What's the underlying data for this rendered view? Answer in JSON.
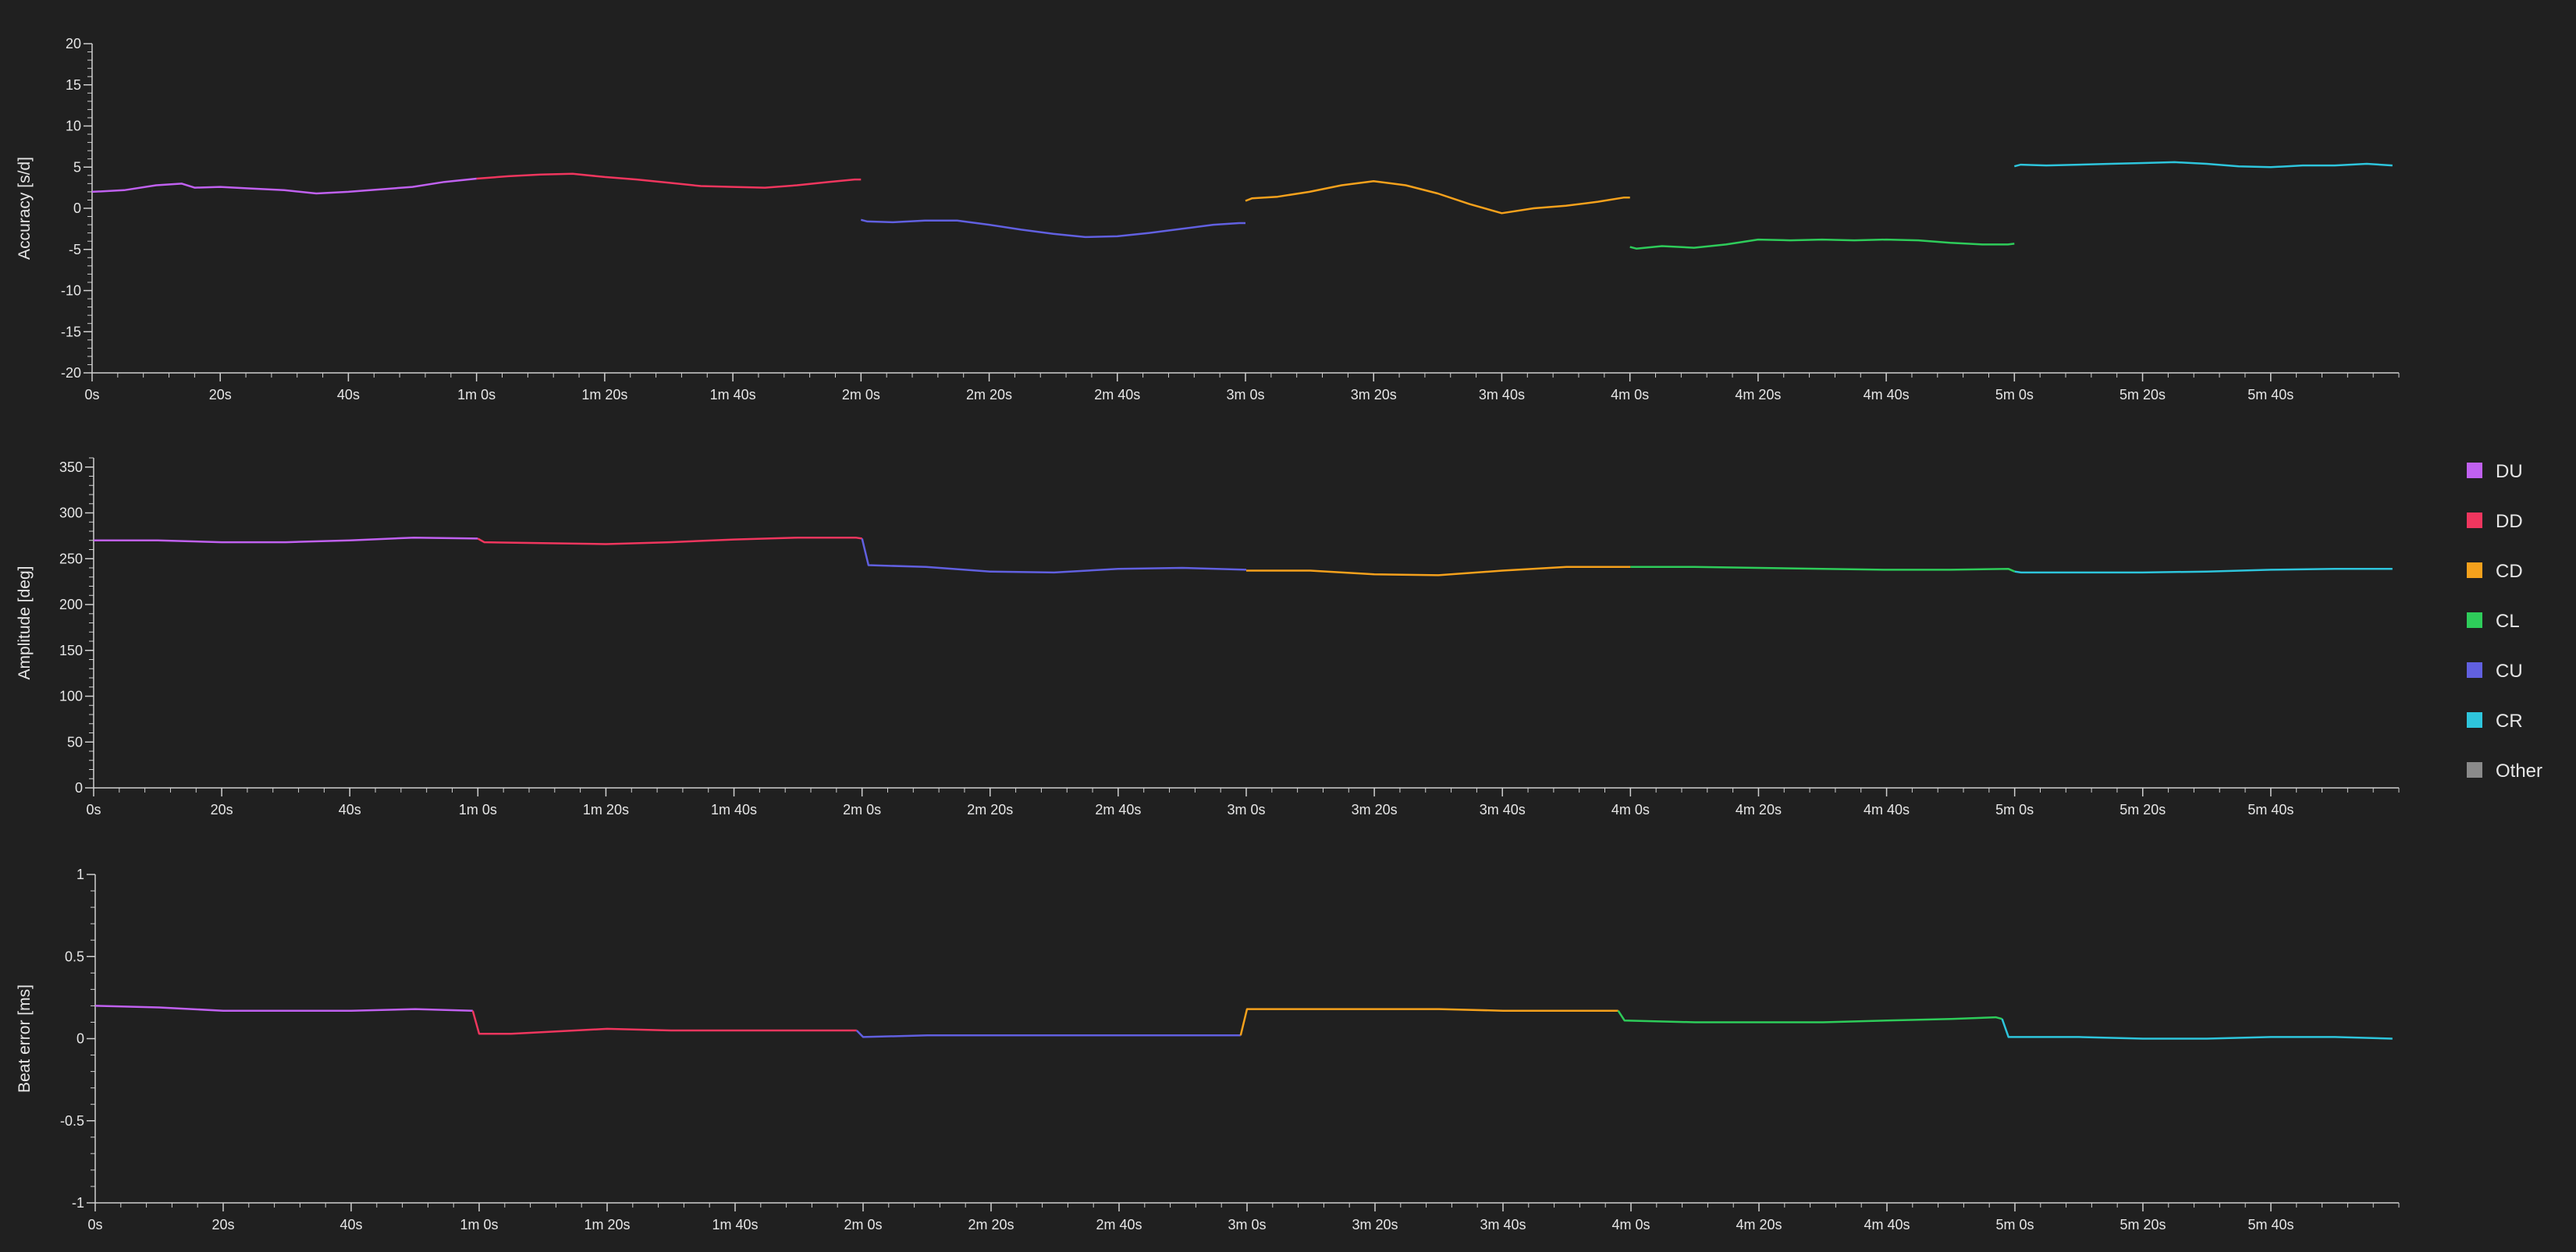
{
  "colors": {
    "background": "#202020",
    "axis": "#cfcfcf",
    "text": "#e6e6e6"
  },
  "legend": [
    {
      "label": "DU",
      "color": "#c061f0"
    },
    {
      "label": "DD",
      "color": "#f0365e"
    },
    {
      "label": "CD",
      "color": "#f5a11c"
    },
    {
      "label": "CL",
      "color": "#2ecc5a"
    },
    {
      "label": "CU",
      "color": "#6160e0"
    },
    {
      "label": "CR",
      "color": "#2ec5dc"
    },
    {
      "label": "Other",
      "color": "#8a8a8a"
    }
  ],
  "chart_data": [
    {
      "type": "line",
      "ylabel": "Accuracy [s/d]",
      "xlabel": "",
      "xunit": "seconds",
      "xlim": [
        0,
        360
      ],
      "ylim": [
        -20,
        20
      ],
      "yticks": [
        "-20",
        "-15",
        "-10",
        "-5",
        "0",
        "5",
        "10",
        "15",
        "20"
      ],
      "ytick_values": [
        -20,
        -15,
        -10,
        -5,
        0,
        5,
        10,
        15,
        20
      ],
      "xticks": [
        "0s",
        "20s",
        "40s",
        "1m 0s",
        "1m 20s",
        "1m 40s",
        "2m 0s",
        "2m 20s",
        "2m 40s",
        "3m 0s",
        "3m 20s",
        "3m 40s",
        "4m 0s",
        "4m 20s",
        "4m 40s",
        "5m 0s",
        "5m 20s",
        "5m 40s"
      ],
      "xtick_values": [
        0,
        20,
        40,
        60,
        80,
        100,
        120,
        140,
        160,
        180,
        200,
        220,
        240,
        260,
        280,
        300,
        320,
        340
      ],
      "grid": false,
      "series": [
        {
          "name": "DU",
          "x": [
            0,
            5,
            10,
            14,
            16,
            20,
            25,
            30,
            35,
            40,
            45,
            50,
            55,
            60
          ],
          "y": [
            2.0,
            2.2,
            2.8,
            3.0,
            2.5,
            2.6,
            2.4,
            2.2,
            1.8,
            2.0,
            2.3,
            2.6,
            3.2,
            3.6
          ]
        },
        {
          "name": "DD",
          "x": [
            60,
            65,
            70,
            75,
            80,
            85,
            90,
            95,
            100,
            105,
            110,
            115,
            119,
            120
          ],
          "y": [
            3.6,
            3.9,
            4.1,
            4.2,
            3.8,
            3.5,
            3.1,
            2.7,
            2.6,
            2.5,
            2.8,
            3.2,
            3.5,
            3.5
          ]
        },
        {
          "name": "CU",
          "x": [
            120,
            121,
            125,
            130,
            135,
            140,
            145,
            150,
            155,
            160,
            165,
            170,
            175,
            179,
            180
          ],
          "y": [
            -1.4,
            -1.6,
            -1.7,
            -1.5,
            -1.5,
            -2.0,
            -2.6,
            -3.1,
            -3.5,
            -3.4,
            -3.0,
            -2.5,
            -2.0,
            -1.8,
            -1.8
          ]
        },
        {
          "name": "CD",
          "x": [
            180,
            181,
            185,
            190,
            195,
            200,
            205,
            210,
            215,
            220,
            225,
            230,
            235,
            239,
            240
          ],
          "y": [
            0.9,
            1.2,
            1.4,
            2.0,
            2.8,
            3.3,
            2.8,
            1.8,
            0.5,
            -0.6,
            0.0,
            0.3,
            0.8,
            1.3,
            1.3
          ]
        },
        {
          "name": "CL",
          "x": [
            240,
            241,
            245,
            250,
            255,
            260,
            265,
            270,
            275,
            280,
            285,
            290,
            295,
            299,
            300
          ],
          "y": [
            -4.7,
            -4.9,
            -4.6,
            -4.8,
            -4.4,
            -3.8,
            -3.9,
            -3.8,
            -3.9,
            -3.8,
            -3.9,
            -4.2,
            -4.4,
            -4.4,
            -4.3
          ]
        },
        {
          "name": "CR",
          "x": [
            300,
            301,
            305,
            310,
            315,
            320,
            325,
            330,
            335,
            340,
            345,
            350,
            355,
            359
          ],
          "y": [
            5.1,
            5.3,
            5.2,
            5.3,
            5.4,
            5.5,
            5.6,
            5.4,
            5.1,
            5.0,
            5.2,
            5.2,
            5.4,
            5.2
          ]
        }
      ]
    },
    {
      "type": "line",
      "ylabel": "Amplitude [deg]",
      "xlabel": "",
      "xunit": "seconds",
      "xlim": [
        0,
        360
      ],
      "ylim": [
        0,
        360
      ],
      "yticks": [
        "0",
        "50",
        "100",
        "150",
        "200",
        "250",
        "300",
        "350"
      ],
      "ytick_values": [
        0,
        50,
        100,
        150,
        200,
        250,
        300,
        350
      ],
      "xticks": [
        "0s",
        "20s",
        "40s",
        "1m 0s",
        "1m 20s",
        "1m 40s",
        "2m 0s",
        "2m 20s",
        "2m 40s",
        "3m 0s",
        "3m 20s",
        "3m 40s",
        "4m 0s",
        "4m 20s",
        "4m 40s",
        "5m 0s",
        "5m 20s",
        "5m 40s"
      ],
      "xtick_values": [
        0,
        20,
        40,
        60,
        80,
        100,
        120,
        140,
        160,
        180,
        200,
        220,
        240,
        260,
        280,
        300,
        320,
        340
      ],
      "grid": false,
      "series": [
        {
          "name": "DU",
          "x": [
            0,
            10,
            20,
            30,
            40,
            50,
            60
          ],
          "y": [
            270,
            270,
            268,
            268,
            270,
            273,
            272
          ]
        },
        {
          "name": "DD",
          "x": [
            60,
            61,
            70,
            80,
            90,
            100,
            110,
            119,
            120
          ],
          "y": [
            272,
            268,
            267,
            266,
            268,
            271,
            273,
            273,
            272
          ]
        },
        {
          "name": "CU",
          "x": [
            120,
            121,
            130,
            140,
            150,
            160,
            170,
            180
          ],
          "y": [
            272,
            243,
            241,
            236,
            235,
            239,
            240,
            238
          ]
        },
        {
          "name": "CD",
          "x": [
            180,
            190,
            200,
            210,
            220,
            230,
            240
          ],
          "y": [
            237,
            237,
            233,
            232,
            237,
            241,
            241
          ]
        },
        {
          "name": "CL",
          "x": [
            240,
            250,
            260,
            270,
            280,
            290,
            299,
            300
          ],
          "y": [
            241,
            241,
            240,
            239,
            238,
            238,
            239,
            236
          ]
        },
        {
          "name": "CR",
          "x": [
            300,
            301,
            310,
            320,
            330,
            340,
            350,
            359
          ],
          "y": [
            236,
            235,
            235,
            235,
            236,
            238,
            239,
            239
          ]
        }
      ]
    },
    {
      "type": "line",
      "ylabel": "Beat error [ms]",
      "xlabel": "",
      "xunit": "seconds",
      "xlim": [
        0,
        360
      ],
      "ylim": [
        -1,
        1
      ],
      "yticks": [
        "-1",
        "-0.5",
        "0",
        "0.5",
        "1"
      ],
      "ytick_values": [
        -1,
        -0.5,
        0,
        0.5,
        1
      ],
      "xticks": [
        "0s",
        "20s",
        "40s",
        "1m 0s",
        "1m 20s",
        "1m 40s",
        "2m 0s",
        "2m 20s",
        "2m 40s",
        "3m 0s",
        "3m 20s",
        "3m 40s",
        "4m 0s",
        "4m 20s",
        "4m 40s",
        "5m 0s",
        "5m 20s",
        "5m 40s"
      ],
      "xtick_values": [
        0,
        20,
        40,
        60,
        80,
        100,
        120,
        140,
        160,
        180,
        200,
        220,
        240,
        260,
        280,
        300,
        320,
        340
      ],
      "grid": false,
      "series": [
        {
          "name": "DU",
          "x": [
            0,
            10,
            20,
            30,
            40,
            50,
            59
          ],
          "y": [
            0.2,
            0.19,
            0.17,
            0.17,
            0.17,
            0.18,
            0.17
          ]
        },
        {
          "name": "DD",
          "x": [
            59,
            60,
            65,
            70,
            75,
            80,
            90,
            100,
            110,
            119
          ],
          "y": [
            0.17,
            0.03,
            0.03,
            0.04,
            0.05,
            0.06,
            0.05,
            0.05,
            0.05,
            0.05
          ]
        },
        {
          "name": "CU",
          "x": [
            119,
            120,
            130,
            140,
            150,
            160,
            170,
            179
          ],
          "y": [
            0.05,
            0.01,
            0.02,
            0.02,
            0.02,
            0.02,
            0.02,
            0.02
          ]
        },
        {
          "name": "CD",
          "x": [
            179,
            180,
            190,
            200,
            210,
            220,
            230,
            238
          ],
          "y": [
            0.02,
            0.18,
            0.18,
            0.18,
            0.18,
            0.17,
            0.17,
            0.17
          ]
        },
        {
          "name": "CL",
          "x": [
            238,
            239,
            250,
            260,
            270,
            280,
            290,
            297,
            298
          ],
          "y": [
            0.17,
            0.11,
            0.1,
            0.1,
            0.1,
            0.11,
            0.12,
            0.13,
            0.12
          ]
        },
        {
          "name": "CR",
          "x": [
            298,
            299,
            310,
            320,
            330,
            340,
            350,
            359
          ],
          "y": [
            0.12,
            0.01,
            0.01,
            0.0,
            0.0,
            0.01,
            0.01,
            0.0
          ]
        }
      ]
    }
  ]
}
